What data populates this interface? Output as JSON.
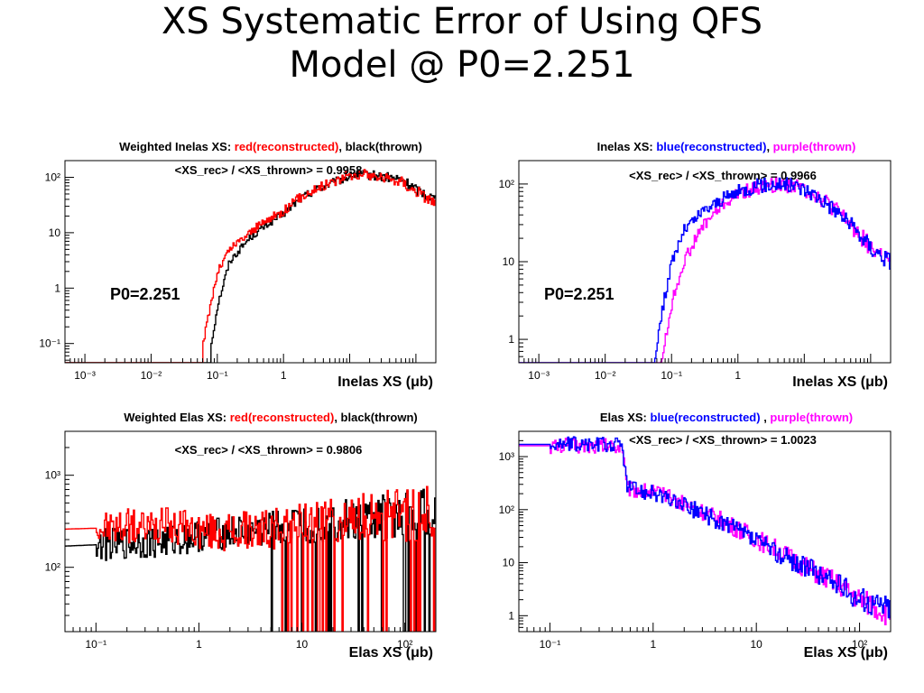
{
  "slide": {
    "title_line1": "XS Systematic Error of Using QFS",
    "title_line2": "Model @ P0=2.251"
  },
  "chart_data": [
    {
      "type": "line",
      "title": "Weighted Inelas XS: red(reconstructed), black(thrown)",
      "title_parts": [
        {
          "text": "Weighted Inelas XS: ",
          "color": "#000000"
        },
        {
          "text": "red(reconstructed)",
          "color": "#ff0000"
        },
        {
          "text": ", black(thrown)",
          "color": "#000000"
        }
      ],
      "ratio_text": "<XS_rec> / <XS_thrown> = 0.9958",
      "annotation": "P0=2.251",
      "xlabel": "Inelas XS (μb)",
      "x_scale": "log",
      "y_scale": "log",
      "xlim": [
        0.0005,
        200
      ],
      "ylim": [
        0.045,
        200
      ],
      "x_ticks": [
        {
          "v": 0.001,
          "label": "10⁻³"
        },
        {
          "v": 0.01,
          "label": "10⁻²"
        },
        {
          "v": 0.1,
          "label": "10⁻¹"
        },
        {
          "v": 1,
          "label": "1"
        }
      ],
      "y_ticks": [
        {
          "v": 0.1,
          "label": "10⁻¹"
        },
        {
          "v": 1,
          "label": "1"
        },
        {
          "v": 10,
          "label": "10"
        },
        {
          "v": 100,
          "label": "10²"
        }
      ],
      "series": [
        {
          "name": "black(thrown)",
          "color": "#000000",
          "x": [
            0.0005,
            0.068,
            0.08,
            0.1,
            0.15,
            0.3,
            0.6,
            1.0,
            1.5,
            2.0,
            3.0,
            5.0,
            8.0,
            12,
            20,
            35,
            60,
            100,
            200
          ],
          "y": [
            0,
            0,
            0.1,
            0.5,
            3,
            8,
            15,
            22,
            35,
            45,
            60,
            75,
            95,
            110,
            110,
            100,
            90,
            60,
            40
          ],
          "noise": 0.12
        },
        {
          "name": "red(reconstructed)",
          "color": "#ff0000",
          "x": [
            0.0005,
            0.055,
            0.06,
            0.08,
            0.1,
            0.15,
            0.3,
            0.6,
            1.0,
            1.5,
            2.0,
            3.0,
            5.0,
            8.0,
            12,
            20,
            35,
            60,
            100,
            200
          ],
          "y": [
            0,
            0,
            0.1,
            0.6,
            2,
            5,
            10,
            18,
            25,
            38,
            48,
            62,
            80,
            100,
            115,
            110,
            95,
            85,
            55,
            35
          ],
          "noise": 0.14
        }
      ]
    },
    {
      "type": "line",
      "title": "Inelas XS: blue(reconstructed), purple(thrown)",
      "title_parts": [
        {
          "text": "Inelas XS: ",
          "color": "#000000"
        },
        {
          "text": "blue(reconstructed)",
          "color": "#0000ff"
        },
        {
          "text": ", ",
          "color": "#000000"
        },
        {
          "text": "purple(thrown)",
          "color": "#ff00ff"
        }
      ],
      "ratio_text": "<XS_rec> / <XS_thrown> = 0.9966",
      "annotation": "P0=2.251",
      "xlabel": "Inelas XS (μb)",
      "x_scale": "log",
      "y_scale": "log",
      "xlim": [
        0.0005,
        200
      ],
      "ylim": [
        0.5,
        200
      ],
      "x_ticks": [
        {
          "v": 0.001,
          "label": "10⁻³"
        },
        {
          "v": 0.01,
          "label": "10⁻²"
        },
        {
          "v": 0.1,
          "label": "10⁻¹"
        },
        {
          "v": 1,
          "label": "1"
        }
      ],
      "y_ticks": [
        {
          "v": 1,
          "label": "1"
        },
        {
          "v": 10,
          "label": "10"
        },
        {
          "v": 100,
          "label": "10²"
        }
      ],
      "series": [
        {
          "name": "purple(thrown)",
          "color": "#ff00ff",
          "x": [
            0.0005,
            0.068,
            0.08,
            0.1,
            0.15,
            0.3,
            0.6,
            1.0,
            2.0,
            4.0,
            7.0,
            12,
            20,
            35,
            60,
            100,
            200
          ],
          "y": [
            0.5,
            0.5,
            1,
            3,
            10,
            30,
            55,
            75,
            90,
            100,
            95,
            80,
            60,
            40,
            25,
            15,
            10
          ],
          "noise": 0.15
        },
        {
          "name": "blue(reconstructed)",
          "color": "#0000ff",
          "x": [
            0.0005,
            0.055,
            0.06,
            0.08,
            0.1,
            0.15,
            0.3,
            0.6,
            1.0,
            2.0,
            4.0,
            7.0,
            12,
            20,
            35,
            60,
            100,
            200
          ],
          "y": [
            0.5,
            0.5,
            1,
            4,
            10,
            25,
            45,
            65,
            80,
            95,
            100,
            95,
            80,
            60,
            40,
            25,
            15,
            10
          ],
          "noise": 0.15
        }
      ]
    },
    {
      "type": "line",
      "title": "Weighted Elas XS: red(reconstructed), black(thrown)",
      "title_parts": [
        {
          "text": "Weighted Elas XS: ",
          "color": "#000000"
        },
        {
          "text": "red(reconstructed)",
          "color": "#ff0000"
        },
        {
          "text": ", black(thrown)",
          "color": "#000000"
        }
      ],
      "ratio_text": "<XS_rec> / <XS_thrown> = 0.9806",
      "annotation": "",
      "xlabel": "Elas XS (μb)",
      "x_scale": "log",
      "y_scale": "log",
      "xlim": [
        0.05,
        200
      ],
      "ylim": [
        20,
        3000
      ],
      "x_ticks": [
        {
          "v": 0.1,
          "label": "10⁻¹"
        },
        {
          "v": 1,
          "label": "1"
        },
        {
          "v": 10,
          "label": "10"
        },
        {
          "v": 100,
          "label": "10²"
        }
      ],
      "y_ticks": [
        {
          "v": 100,
          "label": "10²"
        },
        {
          "v": 1000,
          "label": "10³"
        }
      ],
      "series": [
        {
          "name": "black(thrown)",
          "color": "#000000",
          "x": [
            0.05,
            0.5,
            1.0,
            2.0,
            4.0,
            8.0,
            15,
            30,
            60,
            100,
            200
          ],
          "y": [
            170,
            190,
            220,
            240,
            250,
            270,
            300,
            320,
            340,
            380,
            420
          ],
          "noise": 0.35,
          "spike_start": 5
        },
        {
          "name": "red(reconstructed)",
          "color": "#ff0000",
          "x": [
            0.05,
            0.5,
            1.0,
            2.0,
            4.0,
            8.0,
            15,
            30,
            60,
            100,
            200
          ],
          "y": [
            260,
            280,
            250,
            240,
            260,
            280,
            300,
            330,
            360,
            380,
            400
          ],
          "noise": 0.4,
          "spike_start": 3
        }
      ]
    },
    {
      "type": "line",
      "title": "Elas XS: blue(reconstructed) , purple(thrown)",
      "title_parts": [
        {
          "text": "Elas XS: ",
          "color": "#000000"
        },
        {
          "text": "blue(reconstructed)",
          "color": "#0000ff"
        },
        {
          "text": " , ",
          "color": "#000000"
        },
        {
          "text": "purple(thrown)",
          "color": "#ff00ff"
        }
      ],
      "ratio_text": "<XS_rec> / <XS_thrown> = 1.0023",
      "annotation": "",
      "xlabel": "Elas XS (μb)",
      "x_scale": "log",
      "y_scale": "log",
      "xlim": [
        0.05,
        200
      ],
      "ylim": [
        0.5,
        3000
      ],
      "x_ticks": [
        {
          "v": 0.1,
          "label": "10⁻¹"
        },
        {
          "v": 1,
          "label": "1"
        },
        {
          "v": 10,
          "label": "10"
        },
        {
          "v": 100,
          "label": "10²"
        }
      ],
      "y_ticks": [
        {
          "v": 1,
          "label": "1"
        },
        {
          "v": 10,
          "label": "10"
        },
        {
          "v": 100,
          "label": "10²"
        },
        {
          "v": 1000,
          "label": "10³"
        }
      ],
      "series": [
        {
          "name": "purple(thrown)",
          "color": "#ff00ff",
          "x": [
            0.05,
            0.5,
            0.55,
            1.0,
            2.0,
            4.0,
            8.0,
            15,
            30,
            60,
            100,
            200
          ],
          "y": [
            1600,
            1600,
            250,
            220,
            130,
            70,
            35,
            18,
            8,
            4,
            2,
            1
          ],
          "noise": 0.3
        },
        {
          "name": "blue(reconstructed)",
          "color": "#0000ff",
          "x": [
            0.05,
            0.5,
            0.55,
            1.0,
            2.0,
            4.0,
            8.0,
            15,
            30,
            60,
            100,
            200
          ],
          "y": [
            1700,
            1700,
            270,
            200,
            120,
            65,
            32,
            16,
            8,
            4,
            2,
            1.5
          ],
          "noise": 0.3
        }
      ]
    }
  ]
}
